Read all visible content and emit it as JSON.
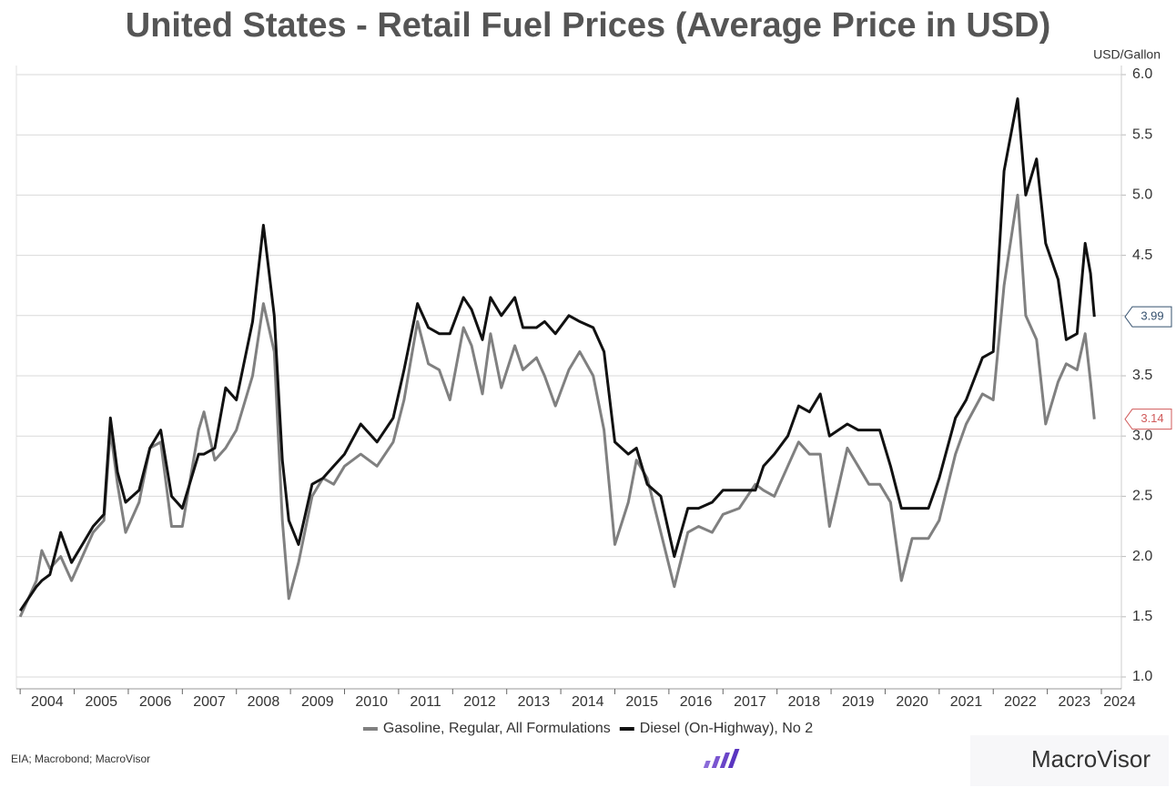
{
  "chart_data": {
    "type": "line",
    "title": "United States - Retail Fuel Prices (Average Price in USD)",
    "y_axis_label": "USD/Gallon",
    "source": "EIA; Macrobond; MacroVisor",
    "brand": "MacroVisor",
    "xlim": [
      2003.93,
      2024.37
    ],
    "xticks": [
      2004,
      2005,
      2006,
      2007,
      2008,
      2009,
      2010,
      2011,
      2012,
      2013,
      2014,
      2015,
      2016,
      2017,
      2018,
      2019,
      2020,
      2021,
      2022,
      2023,
      2024
    ],
    "ylim": [
      1.0,
      6.0
    ],
    "yticks": [
      {
        "value": 1,
        "label": "1.0"
      },
      {
        "value": 1.5,
        "label": "1.5"
      },
      {
        "value": 2,
        "label": "2.0"
      },
      {
        "value": 2.5,
        "label": "2.5"
      },
      {
        "value": 3,
        "label": "3.0"
      },
      {
        "value": 3.5,
        "label": "3.5"
      },
      {
        "value": 4,
        "label": "4.0"
      },
      {
        "value": 4.5,
        "label": "4.5"
      },
      {
        "value": 5,
        "label": "5.0"
      },
      {
        "value": 5.5,
        "label": "5.5"
      },
      {
        "value": 6,
        "label": "6.0"
      }
    ],
    "grid": true,
    "legend": "bottom",
    "x": [
      2004.0,
      2004.15,
      2004.3,
      2004.4,
      2004.55,
      2004.75,
      2004.95,
      2005.15,
      2005.35,
      2005.55,
      2005.67,
      2005.8,
      2005.95,
      2006.2,
      2006.4,
      2006.6,
      2006.8,
      2007.0,
      2007.3,
      2007.4,
      2007.6,
      2007.8,
      2008.0,
      2008.3,
      2008.5,
      2008.7,
      2008.85,
      2008.97,
      2009.15,
      2009.4,
      2009.6,
      2009.8,
      2010.0,
      2010.3,
      2010.6,
      2010.9,
      2011.1,
      2011.35,
      2011.55,
      2011.75,
      2011.95,
      2012.2,
      2012.35,
      2012.55,
      2012.7,
      2012.9,
      2013.15,
      2013.3,
      2013.55,
      2013.7,
      2013.9,
      2014.15,
      2014.35,
      2014.6,
      2014.8,
      2015.0,
      2015.25,
      2015.4,
      2015.6,
      2015.85,
      2016.1,
      2016.35,
      2016.55,
      2016.8,
      2017.0,
      2017.3,
      2017.6,
      2017.75,
      2017.95,
      2018.2,
      2018.4,
      2018.6,
      2018.8,
      2018.97,
      2019.3,
      2019.5,
      2019.7,
      2019.9,
      2020.1,
      2020.3,
      2020.5,
      2020.8,
      2021.0,
      2021.3,
      2021.5,
      2021.8,
      2022.0,
      2022.2,
      2022.45,
      2022.6,
      2022.8,
      2022.97,
      2023.2,
      2023.35,
      2023.55,
      2023.7,
      2023.8,
      2023.87
    ],
    "series": [
      {
        "name": "Gasoline, Regular, All Formulations",
        "color": "#808080",
        "tag_color": "#d05a5a",
        "values": [
          1.5,
          1.65,
          1.8,
          2.05,
          1.9,
          2.0,
          1.8,
          2.0,
          2.2,
          2.3,
          3.05,
          2.6,
          2.2,
          2.45,
          2.9,
          2.95,
          2.25,
          2.25,
          3.05,
          3.2,
          2.8,
          2.9,
          3.05,
          3.5,
          4.1,
          3.7,
          2.3,
          1.65,
          1.95,
          2.5,
          2.65,
          2.6,
          2.75,
          2.85,
          2.75,
          2.95,
          3.3,
          3.95,
          3.6,
          3.55,
          3.3,
          3.9,
          3.75,
          3.35,
          3.85,
          3.4,
          3.75,
          3.55,
          3.65,
          3.5,
          3.25,
          3.55,
          3.7,
          3.5,
          3.05,
          2.1,
          2.45,
          2.8,
          2.65,
          2.2,
          1.75,
          2.2,
          2.25,
          2.2,
          2.35,
          2.4,
          2.6,
          2.55,
          2.5,
          2.75,
          2.95,
          2.85,
          2.85,
          2.25,
          2.9,
          2.75,
          2.6,
          2.6,
          2.45,
          1.8,
          2.15,
          2.15,
          2.3,
          2.85,
          3.1,
          3.35,
          3.3,
          4.25,
          5.0,
          4.0,
          3.8,
          3.1,
          3.45,
          3.6,
          3.55,
          3.85,
          3.45,
          3.14
        ]
      },
      {
        "name": "Diesel (On-Highway), No 2",
        "color": "#111111",
        "tag_color": "#34506e",
        "values": [
          1.55,
          1.65,
          1.75,
          1.8,
          1.85,
          2.2,
          1.95,
          2.1,
          2.25,
          2.35,
          3.15,
          2.7,
          2.45,
          2.55,
          2.9,
          3.05,
          2.5,
          2.4,
          2.85,
          2.85,
          2.9,
          3.4,
          3.3,
          3.95,
          4.75,
          4.0,
          2.8,
          2.3,
          2.1,
          2.6,
          2.65,
          2.75,
          2.85,
          3.1,
          2.95,
          3.15,
          3.55,
          4.1,
          3.9,
          3.85,
          3.85,
          4.15,
          4.05,
          3.8,
          4.15,
          4.0,
          4.15,
          3.9,
          3.9,
          3.95,
          3.85,
          4.0,
          3.95,
          3.9,
          3.7,
          2.95,
          2.85,
          2.9,
          2.6,
          2.5,
          2.0,
          2.4,
          2.4,
          2.45,
          2.55,
          2.55,
          2.55,
          2.75,
          2.85,
          3.0,
          3.25,
          3.2,
          3.35,
          3.0,
          3.1,
          3.05,
          3.05,
          3.05,
          2.75,
          2.4,
          2.4,
          2.4,
          2.65,
          3.15,
          3.3,
          3.65,
          3.7,
          5.2,
          5.8,
          5.0,
          5.3,
          4.6,
          4.3,
          3.8,
          3.85,
          4.6,
          4.35,
          3.99
        ]
      }
    ]
  }
}
